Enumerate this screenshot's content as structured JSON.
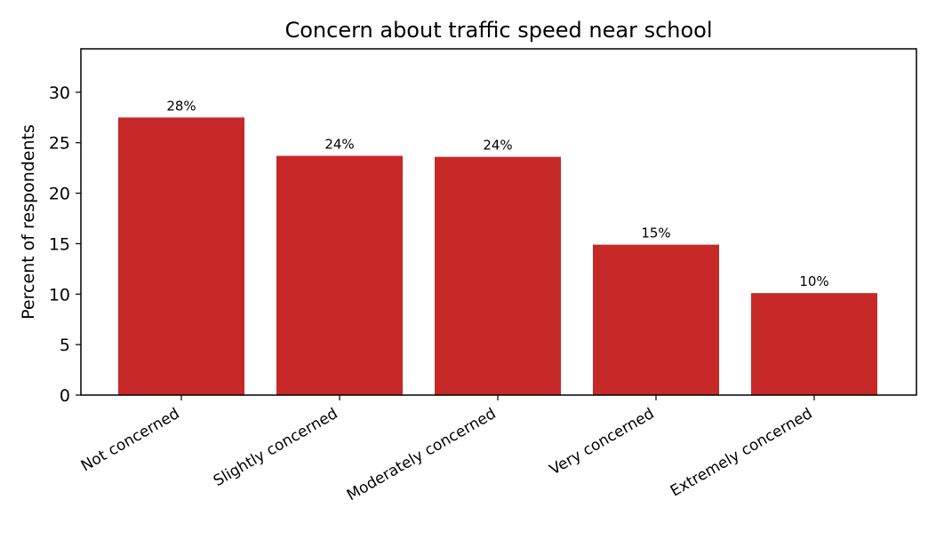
{
  "chart_data": {
    "type": "bar",
    "title": "Concern about traffic speed near school",
    "xlabel": "",
    "ylabel": "Percent of respondents",
    "categories": [
      "Not concerned",
      "Slightly concerned",
      "Moderately concerned",
      "Very concerned",
      "Extremely concerned"
    ],
    "values": [
      27.5,
      23.7,
      23.6,
      14.9,
      10.1
    ],
    "value_labels": [
      "28%",
      "24%",
      "24%",
      "15%",
      "10%"
    ],
    "yticks": [
      0,
      5,
      10,
      15,
      20,
      25,
      30
    ],
    "ytick_labels": [
      "0",
      "5",
      "10",
      "15",
      "20",
      "25",
      "30"
    ],
    "ylim": [
      0,
      34.3
    ],
    "bar_color": "#c62828",
    "grid": false
  }
}
